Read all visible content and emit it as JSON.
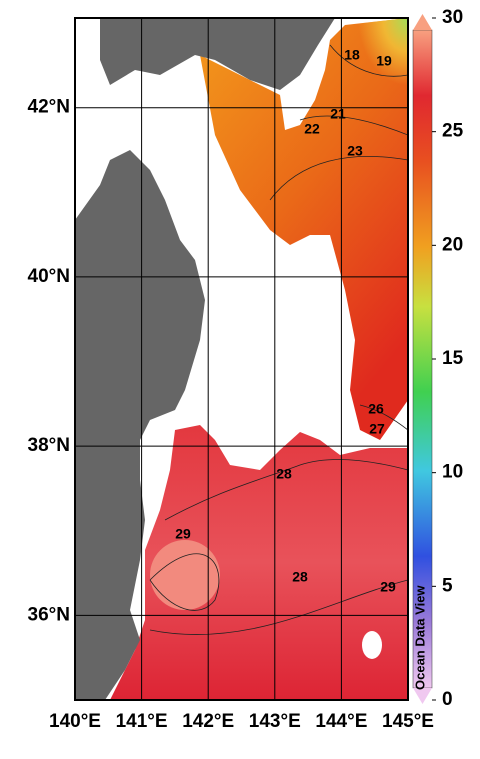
{
  "map": {
    "lon_range": [
      140,
      145
    ],
    "lat_range": [
      35.0,
      43.06
    ],
    "xticks": [
      {
        "value": 140,
        "label": "140°E"
      },
      {
        "value": 141,
        "label": "141°E"
      },
      {
        "value": 142,
        "label": "142°E"
      },
      {
        "value": 143,
        "label": "143°E"
      },
      {
        "value": 144,
        "label": "144°E"
      },
      {
        "value": 145,
        "label": "145°E"
      }
    ],
    "yticks": [
      {
        "value": 36,
        "label": "36°N"
      },
      {
        "value": 38,
        "label": "38°N"
      },
      {
        "value": 40,
        "label": "40°N"
      },
      {
        "value": 42,
        "label": "42°N"
      }
    ],
    "contour_labels": [
      18,
      19,
      21,
      22,
      23,
      26,
      27,
      28,
      29,
      28,
      29
    ],
    "watermark": "Ocean Data View"
  },
  "colorbar": {
    "range": [
      0,
      30
    ],
    "ticks": [
      0,
      5,
      10,
      15,
      20,
      25,
      30
    ]
  }
}
